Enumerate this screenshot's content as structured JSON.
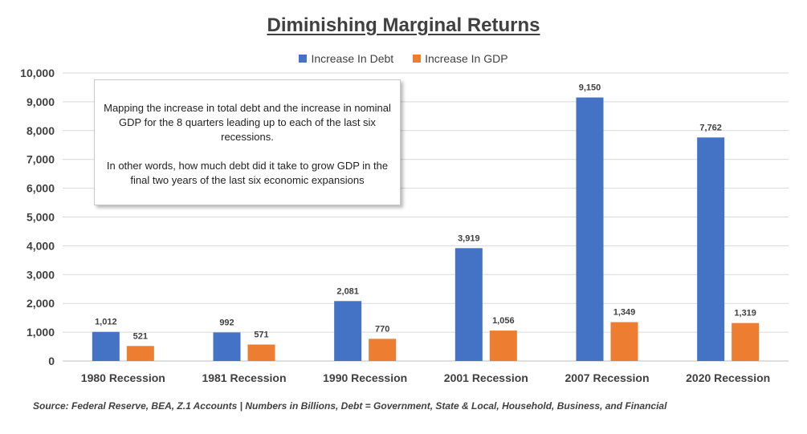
{
  "chart_data": {
    "type": "bar",
    "title": "Diminishing Marginal Returns",
    "categories": [
      "1980 Recession",
      "1981 Recession",
      "1990 Recession",
      "2001 Recession",
      "2007 Recession",
      "2020 Recession"
    ],
    "series": [
      {
        "name": "Increase In Debt",
        "color": "#4472c4",
        "values": [
          1012,
          992,
          2081,
          3919,
          9150,
          7762
        ],
        "labels": [
          "1,012",
          "992",
          "2,081",
          "3,919",
          "9,150",
          "7,762"
        ]
      },
      {
        "name": "Increase In GDP",
        "color": "#ed7d31",
        "values": [
          521,
          571,
          770,
          1056,
          1349,
          1319
        ],
        "labels": [
          "521",
          "571",
          "770",
          "1,056",
          "1,349",
          "1,319"
        ]
      }
    ],
    "ylim": [
      0,
      10000
    ],
    "yticks": [
      0,
      1000,
      2000,
      3000,
      4000,
      5000,
      6000,
      7000,
      8000,
      9000,
      10000
    ],
    "ytick_labels": [
      "0",
      "1,000",
      "2,000",
      "3,000",
      "4,000",
      "5,000",
      "6,000",
      "7,000",
      "8,000",
      "9,000",
      "10,000"
    ],
    "xlabel": "",
    "ylabel": "",
    "grid": true,
    "legend_position": "top",
    "annotation": {
      "paragraph1": "Mapping the increase in total debt and the increase in nominal GDP for the 8 quarters leading up to each of the last six recessions.",
      "paragraph2": "In other words, how much debt did it take to grow GDP in the final two years of the last six economic expansions"
    },
    "source": "Source: Federal Reserve, BEA, Z.1 Accounts | Numbers in Billions, Debt = Government, State & Local, Household, Business, and Financial"
  }
}
